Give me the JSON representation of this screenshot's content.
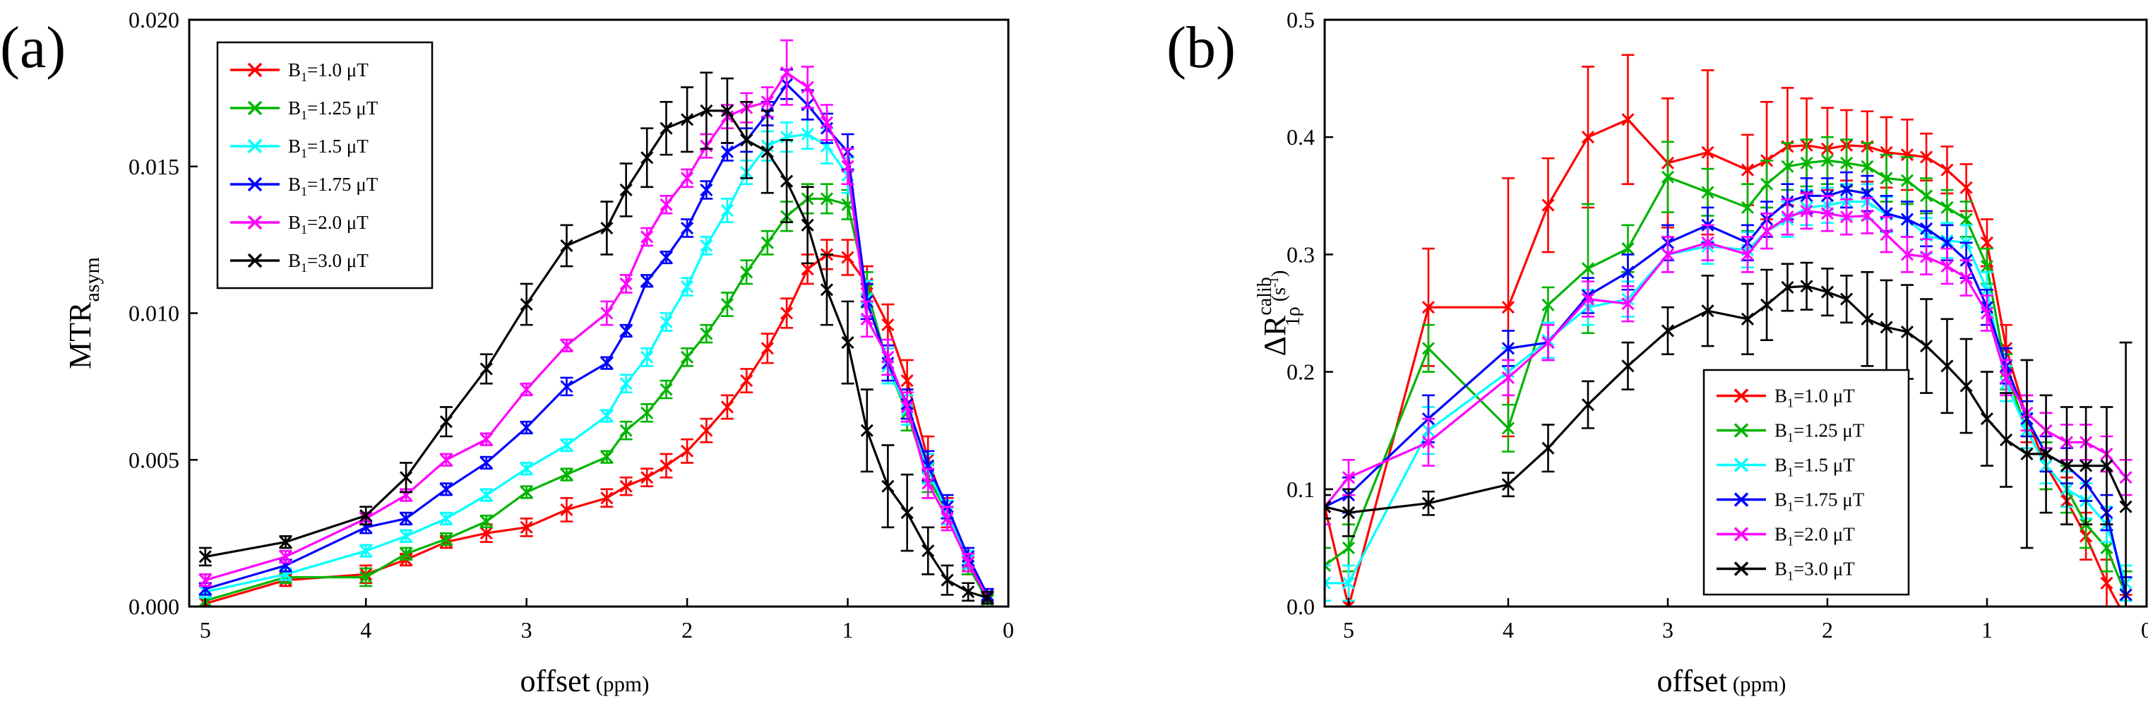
{
  "chart_data": [
    {
      "id": "a",
      "panel_label": "(a)",
      "type": "line",
      "xlabel": "offset",
      "xunit": "(ppm)",
      "ylabel_main": "MTR",
      "ylabel_sub": "asym",
      "xlim": [
        5.1,
        0
      ],
      "ylim": [
        0,
        0.02
      ],
      "xticks": [
        5,
        4,
        3,
        2,
        1,
        0
      ],
      "yticks": [
        0.0,
        0.005,
        0.01,
        0.015,
        0.02
      ],
      "ytick_labels": [
        "0.000",
        "0.005",
        "0.010",
        "0.015",
        "0.020"
      ],
      "legend_position": "top-left",
      "x": [
        5,
        4.5,
        4,
        3.75,
        3.5,
        3.25,
        3,
        2.75,
        2.5,
        2.38,
        2.25,
        2.13,
        2,
        1.88,
        1.75,
        1.63,
        1.5,
        1.38,
        1.25,
        1.13,
        1,
        0.88,
        0.75,
        0.63,
        0.5,
        0.38,
        0.25,
        0.13
      ],
      "series": [
        {
          "name": "B1=1.0 μT",
          "label_main": "B",
          "label_sub": "1",
          "label_rest": "=1.0 μT",
          "color": "#ff0000",
          "values": [
            0.0001,
            0.0009,
            0.0011,
            0.0016,
            0.0022,
            0.0025,
            0.0027,
            0.0033,
            0.0037,
            0.0041,
            0.0044,
            0.0048,
            0.0053,
            0.006,
            0.0068,
            0.0077,
            0.0088,
            0.01,
            0.0115,
            0.012,
            0.0119,
            0.011,
            0.0096,
            0.0077,
            0.005,
            0.0032,
            0.0015,
            0.0003
          ],
          "errors": [
            0.0002,
            0.0002,
            0.0003,
            0.0002,
            0.0002,
            0.0003,
            0.0003,
            0.0004,
            0.0003,
            0.0003,
            0.0003,
            0.0004,
            0.0004,
            0.0004,
            0.0004,
            0.0004,
            0.0005,
            0.0005,
            0.0005,
            0.0005,
            0.0006,
            0.0006,
            0.0007,
            0.0007,
            0.0008,
            0.0005,
            0.0004,
            0.0002
          ]
        },
        {
          "name": "B1=1.25 μT",
          "label_main": "B",
          "label_sub": "1",
          "label_rest": "=1.25 μT",
          "color": "#00b400",
          "values": [
            0.0002,
            0.001,
            0.001,
            0.0018,
            0.0023,
            0.0029,
            0.0039,
            0.0045,
            0.0051,
            0.006,
            0.0066,
            0.0074,
            0.0085,
            0.0093,
            0.0103,
            0.0114,
            0.0124,
            0.0133,
            0.0139,
            0.0139,
            0.0137,
            0.0108,
            0.0082,
            0.0066,
            0.0044,
            0.0032,
            0.0014,
            0.0002
          ],
          "errors": [
            0.0002,
            0.0002,
            0.0003,
            0.0002,
            0.0002,
            0.0002,
            0.0002,
            0.0002,
            0.0002,
            0.0003,
            0.0003,
            0.0003,
            0.0003,
            0.0003,
            0.0004,
            0.0004,
            0.0004,
            0.0005,
            0.0005,
            0.0005,
            0.0005,
            0.0006,
            0.0006,
            0.0006,
            0.0005,
            0.0004,
            0.0003,
            0.0002
          ]
        },
        {
          "name": "B1=1.5 μT",
          "label_main": "B",
          "label_sub": "1",
          "label_rest": "=1.5 μT",
          "color": "#00ffff",
          "values": [
            0.0005,
            0.0011,
            0.0019,
            0.0024,
            0.003,
            0.0038,
            0.0047,
            0.0055,
            0.0065,
            0.0076,
            0.0085,
            0.0097,
            0.0109,
            0.0123,
            0.0135,
            0.0148,
            0.0157,
            0.016,
            0.0161,
            0.0157,
            0.0147,
            0.0105,
            0.0082,
            0.0067,
            0.0047,
            0.0032,
            0.0016,
            0.0003
          ],
          "errors": [
            0.0002,
            0.0002,
            0.0002,
            0.0002,
            0.0002,
            0.0002,
            0.0002,
            0.0002,
            0.0002,
            0.0003,
            0.0003,
            0.0003,
            0.0003,
            0.0003,
            0.0004,
            0.0004,
            0.0005,
            0.0005,
            0.0005,
            0.0006,
            0.0006,
            0.0006,
            0.0006,
            0.0005,
            0.0005,
            0.0004,
            0.0003,
            0.0002
          ]
        },
        {
          "name": "B1=1.75 μT",
          "label_main": "B",
          "label_sub": "1",
          "label_rest": "=1.75 μT",
          "color": "#0000ff",
          "values": [
            0.0006,
            0.0014,
            0.0027,
            0.003,
            0.004,
            0.0049,
            0.0061,
            0.0075,
            0.0083,
            0.0094,
            0.0111,
            0.0119,
            0.0129,
            0.0142,
            0.0155,
            0.0159,
            0.0168,
            0.0178,
            0.0171,
            0.0163,
            0.0155,
            0.0104,
            0.0083,
            0.0069,
            0.0048,
            0.0034,
            0.0017,
            0.0004
          ],
          "errors": [
            0.0002,
            0.0002,
            0.0002,
            0.0002,
            0.0002,
            0.0002,
            0.0002,
            0.0003,
            0.0002,
            0.0002,
            0.0002,
            0.0002,
            0.0003,
            0.0003,
            0.0003,
            0.0004,
            0.0004,
            0.0005,
            0.0005,
            0.0005,
            0.0006,
            0.0006,
            0.0006,
            0.0005,
            0.0005,
            0.0004,
            0.0003,
            0.0002
          ]
        },
        {
          "name": "B1=2.0 μT",
          "label_main": "B",
          "label_sub": "1",
          "label_rest": "=2.0 μT",
          "color": "#ff00ff",
          "values": [
            0.0009,
            0.0017,
            0.003,
            0.0038,
            0.005,
            0.0057,
            0.0074,
            0.0089,
            0.01,
            0.011,
            0.0126,
            0.0137,
            0.0146,
            0.0157,
            0.0167,
            0.017,
            0.0172,
            0.0182,
            0.0177,
            0.0165,
            0.015,
            0.0098,
            0.0085,
            0.0068,
            0.0042,
            0.003,
            0.0015,
            0.0003
          ],
          "errors": [
            0.0002,
            0.0002,
            0.0002,
            0.0002,
            0.0002,
            0.0002,
            0.0002,
            0.0002,
            0.0004,
            0.0003,
            0.0003,
            0.0003,
            0.0003,
            0.0004,
            0.0004,
            0.0005,
            0.0005,
            0.0011,
            0.0007,
            0.0006,
            0.0006,
            0.0006,
            0.0006,
            0.0005,
            0.0005,
            0.0004,
            0.0003,
            0.0002
          ]
        },
        {
          "name": "B1=3.0 μT",
          "label_main": "B",
          "label_sub": "1",
          "label_rest": "=3.0 μT",
          "color": "#000000",
          "values": [
            0.0017,
            0.0022,
            0.0031,
            0.0044,
            0.0063,
            0.0081,
            0.0103,
            0.0123,
            0.0129,
            0.0142,
            0.0153,
            0.0163,
            0.0166,
            0.0169,
            0.0169,
            0.0159,
            0.0155,
            0.0145,
            0.013,
            0.0108,
            0.009,
            0.006,
            0.0041,
            0.0032,
            0.0019,
            0.0009,
            0.0005,
            0.0003
          ],
          "errors": [
            0.0003,
            0.0002,
            0.0003,
            0.0005,
            0.0005,
            0.0005,
            0.0007,
            0.0007,
            0.0009,
            0.0009,
            0.001,
            0.0009,
            0.0011,
            0.0013,
            0.0011,
            0.0013,
            0.0014,
            0.0014,
            0.0013,
            0.0012,
            0.0014,
            0.0014,
            0.0014,
            0.0013,
            0.0008,
            0.0005,
            0.0003,
            0.0002
          ]
        }
      ]
    },
    {
      "id": "b",
      "panel_label": "(b)",
      "type": "line",
      "xlabel": "offset",
      "xunit": "(ppm)",
      "ylabel_main": "ΔR",
      "ylabel_sub": "1ρ",
      "ylabel_sup": "calib",
      "ylabel_unit": "(s",
      "ylabel_unit_sup": "-1",
      "ylabel_unit_close": ")",
      "xlim": [
        5.15,
        0
      ],
      "ylim": [
        0,
        0.5
      ],
      "xticks": [
        5,
        4,
        3,
        2,
        1,
        0
      ],
      "yticks": [
        0.0,
        0.1,
        0.2,
        0.3,
        0.4,
        0.5
      ],
      "ytick_labels": [
        "0.0",
        "0.1",
        "0.2",
        "0.3",
        "0.4",
        "0.5"
      ],
      "legend_position": "bottom-center",
      "x": [
        5.15,
        5,
        4.5,
        4,
        3.75,
        3.5,
        3.25,
        3,
        2.75,
        2.5,
        2.38,
        2.25,
        2.13,
        2,
        1.88,
        1.75,
        1.63,
        1.5,
        1.38,
        1.25,
        1.13,
        1,
        0.88,
        0.75,
        0.63,
        0.5,
        0.38,
        0.25,
        0.13
      ],
      "series": [
        {
          "name": "B1=1.0 μT",
          "label_main": "B",
          "label_sub": "1",
          "label_rest": "=1.0 μT",
          "color": "#ff0000",
          "values": [
            0.085,
            0.0,
            0.255,
            0.255,
            0.342,
            0.4,
            0.415,
            0.378,
            0.387,
            0.372,
            0.38,
            0.392,
            0.393,
            0.39,
            0.393,
            0.392,
            0.387,
            0.385,
            0.383,
            0.372,
            0.357,
            0.31,
            0.22,
            0.16,
            0.12,
            0.09,
            0.06,
            0.02,
            -0.01
          ],
          "errors": [
            0.015,
            0.03,
            0.05,
            0.11,
            0.04,
            0.06,
            0.055,
            0.055,
            0.07,
            0.03,
            0.05,
            0.05,
            0.04,
            0.035,
            0.03,
            0.03,
            0.03,
            0.03,
            0.02,
            0.02,
            0.02,
            0.02,
            0.02,
            0.02,
            0.02,
            0.02,
            0.02,
            0.02,
            0.02
          ]
        },
        {
          "name": "B1=1.25 μT",
          "label_main": "B",
          "label_sub": "1",
          "label_rest": "=1.25 μT",
          "color": "#00b400",
          "values": [
            0.035,
            0.05,
            0.22,
            0.152,
            0.257,
            0.288,
            0.305,
            0.366,
            0.353,
            0.34,
            0.36,
            0.375,
            0.378,
            0.38,
            0.378,
            0.375,
            0.365,
            0.363,
            0.35,
            0.34,
            0.33,
            0.29,
            0.2,
            0.15,
            0.12,
            0.1,
            0.07,
            0.05,
            0.01
          ],
          "errors": [
            0.015,
            0.02,
            0.02,
            0.02,
            0.015,
            0.055,
            0.02,
            0.03,
            0.02,
            0.02,
            0.02,
            0.02,
            0.02,
            0.02,
            0.02,
            0.02,
            0.02,
            0.02,
            0.015,
            0.015,
            0.015,
            0.015,
            0.015,
            0.015,
            0.02,
            0.02,
            0.02,
            0.02,
            0.02
          ]
        },
        {
          "name": "B1=1.5 μT",
          "label_main": "B",
          "label_sub": "1",
          "label_rest": "=1.5 μT",
          "color": "#00ffff",
          "values": [
            0.02,
            0.02,
            0.15,
            0.2,
            0.227,
            0.255,
            0.262,
            0.3,
            0.307,
            0.304,
            0.32,
            0.33,
            0.34,
            0.342,
            0.345,
            0.345,
            0.334,
            0.33,
            0.316,
            0.312,
            0.31,
            0.27,
            0.19,
            0.15,
            0.12,
            0.1,
            0.09,
            0.07,
            0.02
          ],
          "errors": [
            0.015,
            0.015,
            0.02,
            0.02,
            0.015,
            0.015,
            0.015,
            0.015,
            0.015,
            0.015,
            0.015,
            0.015,
            0.015,
            0.015,
            0.015,
            0.015,
            0.015,
            0.015,
            0.015,
            0.015,
            0.015,
            0.015,
            0.015,
            0.015,
            0.015,
            0.015,
            0.015,
            0.015,
            0.015
          ]
        },
        {
          "name": "B1=1.75 μT",
          "label_main": "B",
          "label_sub": "1",
          "label_rest": "=1.75 μT",
          "color": "#0000ff",
          "values": [
            0.085,
            0.095,
            0.16,
            0.22,
            0.225,
            0.265,
            0.285,
            0.31,
            0.325,
            0.31,
            0.33,
            0.345,
            0.35,
            0.35,
            0.355,
            0.352,
            0.335,
            0.33,
            0.322,
            0.31,
            0.295,
            0.255,
            0.205,
            0.16,
            0.13,
            0.12,
            0.105,
            0.08,
            0.01
          ],
          "errors": [
            0.015,
            0.015,
            0.02,
            0.015,
            0.015,
            0.015,
            0.015,
            0.015,
            0.015,
            0.015,
            0.015,
            0.015,
            0.015,
            0.015,
            0.015,
            0.015,
            0.015,
            0.015,
            0.015,
            0.015,
            0.015,
            0.015,
            0.015,
            0.015,
            0.015,
            0.015,
            0.015,
            0.015,
            0.015
          ]
        },
        {
          "name": "B1=2.0 μT",
          "label_main": "B",
          "label_sub": "1",
          "label_rest": "=2.0 μT",
          "color": "#ff00ff",
          "values": [
            0.085,
            0.11,
            0.14,
            0.195,
            0.225,
            0.262,
            0.258,
            0.3,
            0.31,
            0.3,
            0.32,
            0.332,
            0.337,
            0.335,
            0.332,
            0.333,
            0.317,
            0.3,
            0.298,
            0.29,
            0.28,
            0.25,
            0.195,
            0.165,
            0.15,
            0.14,
            0.14,
            0.13,
            0.11
          ],
          "errors": [
            0.015,
            0.015,
            0.02,
            0.015,
            0.015,
            0.015,
            0.015,
            0.015,
            0.015,
            0.015,
            0.015,
            0.015,
            0.015,
            0.015,
            0.015,
            0.015,
            0.015,
            0.015,
            0.015,
            0.015,
            0.015,
            0.015,
            0.015,
            0.015,
            0.015,
            0.015,
            0.015,
            0.015,
            0.015
          ]
        },
        {
          "name": "B1=3.0 μT",
          "label_main": "B",
          "label_sub": "1",
          "label_rest": "=3.0 μT",
          "color": "#000000",
          "values": [
            0.085,
            0.08,
            0.088,
            0.104,
            0.135,
            0.172,
            0.205,
            0.235,
            0.252,
            0.245,
            0.257,
            0.272,
            0.273,
            0.268,
            0.262,
            0.245,
            0.238,
            0.234,
            0.222,
            0.205,
            0.188,
            0.16,
            0.142,
            0.13,
            0.13,
            0.12,
            0.12,
            0.12,
            0.085
          ],
          "errors": [
            0.01,
            0.02,
            0.01,
            0.01,
            0.02,
            0.02,
            0.02,
            0.02,
            0.03,
            0.03,
            0.03,
            0.02,
            0.02,
            0.02,
            0.02,
            0.04,
            0.04,
            0.04,
            0.04,
            0.04,
            0.04,
            0.04,
            0.04,
            0.08,
            0.05,
            0.05,
            0.05,
            0.05,
            0.14
          ]
        }
      ]
    }
  ]
}
